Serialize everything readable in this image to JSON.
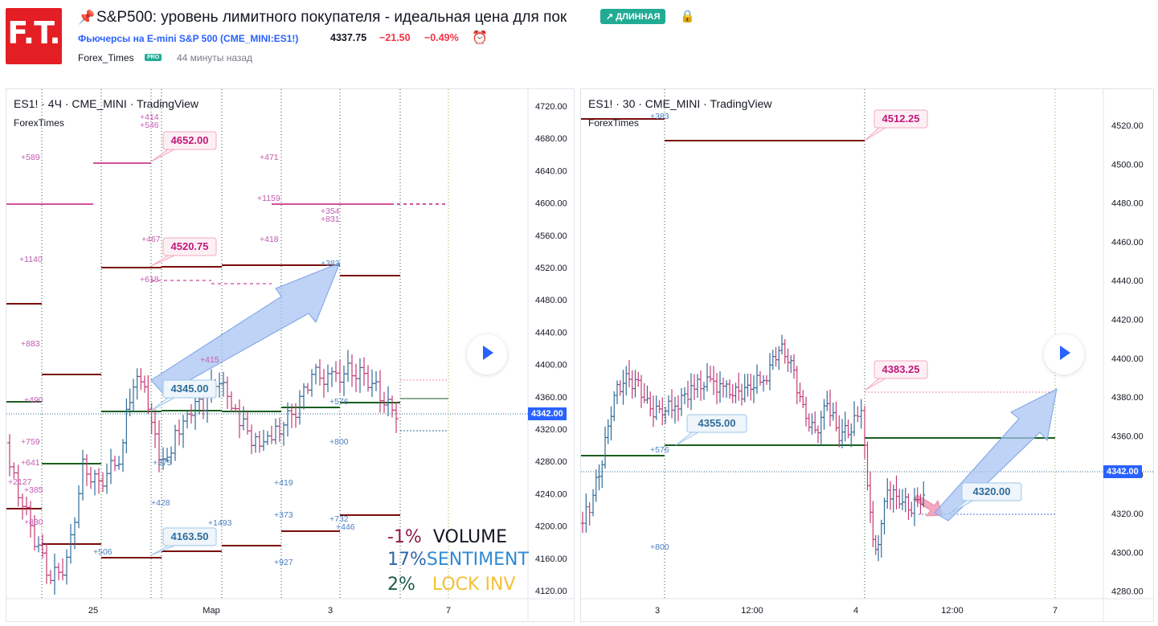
{
  "header": {
    "logo_text": "F.T.",
    "title": "S&P500: уровень лимитного покупателя - идеальная цена для пок",
    "badge_label": "ДЛИННАЯ",
    "symbol_line": "Фьючерсы на E-mini S&P 500 (CME_MINI:ES1!)",
    "last_price": "4337.75",
    "change": "−21.50",
    "change_percent": "−0.49%",
    "author": "Forex_Times",
    "author_badge": "PRO",
    "published": "44 минуты назад"
  },
  "colors": {
    "up": "#2e6c99",
    "down": "#c43b76",
    "accent": "#2962ff",
    "green_level": "#1b5e20",
    "red_level": "#7b0c0c",
    "magenta_level": "#c2187a"
  },
  "left_chart": {
    "title": "ES1! · 4Ч · CME_MINI · TradingView",
    "subtitle": "ForexTimes",
    "current_price_label": "4342.00",
    "price_axis": [
      "4720.00",
      "4680.00",
      "4640.00",
      "4600.00",
      "4560.00",
      "4520.00",
      "4480.00",
      "4440.00",
      "4400.00",
      "4360.00",
      "4320.00",
      "4280.00",
      "4240.00",
      "4200.00",
      "4160.00",
      "4120.00"
    ],
    "time_axis": [
      "25",
      "Мар",
      "3",
      "7"
    ],
    "callouts": [
      "4652.00",
      "4520.75",
      "4345.00",
      "4163.50"
    ],
    "stats": [
      {
        "value": "-1%",
        "label": "VOLUME"
      },
      {
        "value": "17%",
        "label": "SENTIMENT"
      },
      {
        "value": "2%",
        "label": "LOCK INV"
      }
    ],
    "volume_labels_pink": [
      "+589",
      "+414",
      "+546",
      "+471",
      "+1159",
      "+354",
      "+831",
      "+467",
      "+418",
      "+1140",
      "+618",
      "+883",
      "+490",
      "+759",
      "+641",
      "+2127",
      "+385",
      "+830",
      "+415"
    ],
    "volume_labels_blue": [
      "+383",
      "+576",
      "+800",
      "+375",
      "+419",
      "+428",
      "+1493",
      "+373",
      "+732",
      "+446",
      "+506",
      "+927"
    ]
  },
  "right_chart": {
    "title": "ES1! · 30 · CME_MINI · TradingView",
    "subtitle": "ForexTimes",
    "current_price_label": "4342.00",
    "price_axis": [
      "4520.00",
      "4500.00",
      "4480.00",
      "4460.00",
      "4440.00",
      "4420.00",
      "4400.00",
      "4380.00",
      "4360.00",
      "4340.00",
      "4320.00",
      "4300.00",
      "4280.00"
    ],
    "time_axis": [
      "3",
      "12:00",
      "4",
      "12:00",
      "7"
    ],
    "callouts": [
      "4512.25",
      "4383.25",
      "4355.00",
      "4320.00"
    ],
    "volume_labels": [
      "+383",
      "+576",
      "+800"
    ]
  }
}
